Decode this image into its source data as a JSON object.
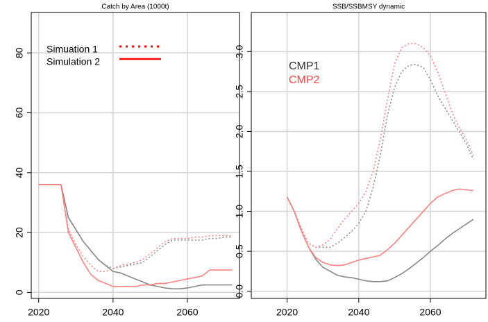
{
  "chart_data": [
    {
      "type": "line",
      "title": "Catch by Area (1000t)",
      "x": [
        2020,
        2022,
        2024,
        2026,
        2028,
        2030,
        2032,
        2034,
        2036,
        2038,
        2040,
        2042,
        2044,
        2046,
        2048,
        2050,
        2052,
        2054,
        2056,
        2058,
        2060,
        2062,
        2064,
        2066,
        2068,
        2070,
        2072
      ],
      "series": [
        {
          "color": "#888888",
          "dash": "solid",
          "values": [
            36,
            36,
            36,
            36,
            25,
            21,
            17,
            14,
            11,
            9,
            7,
            6.5,
            5.5,
            4.5,
            3.5,
            2.5,
            2,
            1.5,
            1.2,
            1.2,
            1.5,
            2,
            2.5,
            2.5,
            2.5,
            2.5,
            2.5
          ]
        },
        {
          "color": "#ff8080",
          "dash": "solid",
          "values": [
            36,
            36,
            36,
            36,
            20,
            15,
            10,
            6,
            4,
            3,
            2,
            2,
            2,
            2,
            2.5,
            2.5,
            3,
            3,
            3.5,
            4,
            4.5,
            5,
            5.5,
            7.5,
            7.5,
            7.5,
            7.5
          ]
        },
        {
          "color": "#888888",
          "dash": "dotted",
          "values": [
            36,
            36,
            36,
            36,
            25,
            21,
            17,
            14,
            11,
            9,
            8,
            8.5,
            9,
            9.5,
            10,
            12,
            14,
            16,
            17.5,
            17.5,
            17.5,
            17.5,
            17.5,
            18,
            18,
            18.5,
            18.5
          ]
        },
        {
          "color": "#ff8080",
          "dash": "dotted",
          "values": [
            36,
            36,
            36,
            36,
            21,
            16,
            12,
            9,
            7,
            7,
            8,
            9,
            9.5,
            10,
            11,
            13,
            15,
            17,
            18,
            18,
            18,
            18.5,
            18.5,
            19,
            19,
            19,
            19
          ]
        }
      ],
      "xlim": [
        2018,
        2074
      ],
      "xticks": [
        2020,
        2040,
        2060
      ],
      "ylim": [
        -2,
        93.5
      ],
      "yticks": [
        0,
        20,
        40,
        60,
        80
      ],
      "grid": true,
      "legend_style": "line",
      "legend": [
        {
          "label": "Simuation 1",
          "color": "#ff0000",
          "dash": "dotted"
        },
        {
          "label": "Simulation 2",
          "color": "#ff0000",
          "dash": "solid"
        }
      ]
    },
    {
      "type": "line",
      "title": "SSB/SSBMSY dynamic",
      "x": [
        2020,
        2022,
        2024,
        2026,
        2028,
        2030,
        2032,
        2034,
        2036,
        2038,
        2040,
        2042,
        2044,
        2046,
        2048,
        2050,
        2052,
        2054,
        2056,
        2058,
        2060,
        2062,
        2064,
        2066,
        2068,
        2070,
        2072
      ],
      "series": [
        {
          "color": "#888888",
          "dash": "solid",
          "values": [
            1.18,
            1.0,
            0.75,
            0.55,
            0.4,
            0.3,
            0.25,
            0.2,
            0.18,
            0.17,
            0.15,
            0.13,
            0.12,
            0.12,
            0.13,
            0.17,
            0.22,
            0.28,
            0.35,
            0.42,
            0.5,
            0.57,
            0.65,
            0.72,
            0.78,
            0.84,
            0.9
          ]
        },
        {
          "color": "#ff8080",
          "dash": "solid",
          "values": [
            1.18,
            1.0,
            0.75,
            0.55,
            0.42,
            0.36,
            0.33,
            0.32,
            0.33,
            0.36,
            0.39,
            0.41,
            0.43,
            0.45,
            0.52,
            0.6,
            0.7,
            0.8,
            0.9,
            1.0,
            1.1,
            1.18,
            1.22,
            1.26,
            1.28,
            1.27,
            1.26
          ]
        },
        {
          "color": "#888888",
          "dash": "dotted",
          "values": [
            1.18,
            1.0,
            0.78,
            0.6,
            0.55,
            0.55,
            0.55,
            0.6,
            0.67,
            0.75,
            0.85,
            1.0,
            1.3,
            1.7,
            2.2,
            2.55,
            2.75,
            2.83,
            2.84,
            2.8,
            2.65,
            2.45,
            2.3,
            2.15,
            2.0,
            1.85,
            1.65
          ]
        },
        {
          "color": "#ff8080",
          "dash": "dotted",
          "values": [
            1.18,
            1.0,
            0.78,
            0.6,
            0.55,
            0.58,
            0.65,
            0.78,
            0.9,
            1.0,
            1.1,
            1.25,
            1.5,
            1.9,
            2.4,
            2.85,
            3.05,
            3.1,
            3.1,
            3.05,
            2.95,
            2.75,
            2.5,
            2.25,
            2.05,
            1.9,
            1.7
          ]
        }
      ],
      "xlim": [
        2010,
        2075.5
      ],
      "xticks": [
        2020,
        2040,
        2060
      ],
      "ylim": [
        -0.09,
        3.49
      ],
      "yticks": [
        {
          "value": 0,
          "label": "0.0"
        },
        {
          "value": 0.5,
          "label": "0.5"
        },
        {
          "value": 1,
          "label": "1.0"
        },
        {
          "value": 1.5,
          "label": "1.5"
        },
        {
          "value": 2,
          "label": "2.0"
        },
        {
          "value": 2.5,
          "label": "2.5"
        },
        {
          "value": 3,
          "label": "3.0"
        }
      ],
      "grid": true,
      "legend_style": "text",
      "legend": [
        {
          "label": "CMP1",
          "color": "#333333"
        },
        {
          "label": "CMP2",
          "color": "#ff4040"
        }
      ]
    }
  ]
}
